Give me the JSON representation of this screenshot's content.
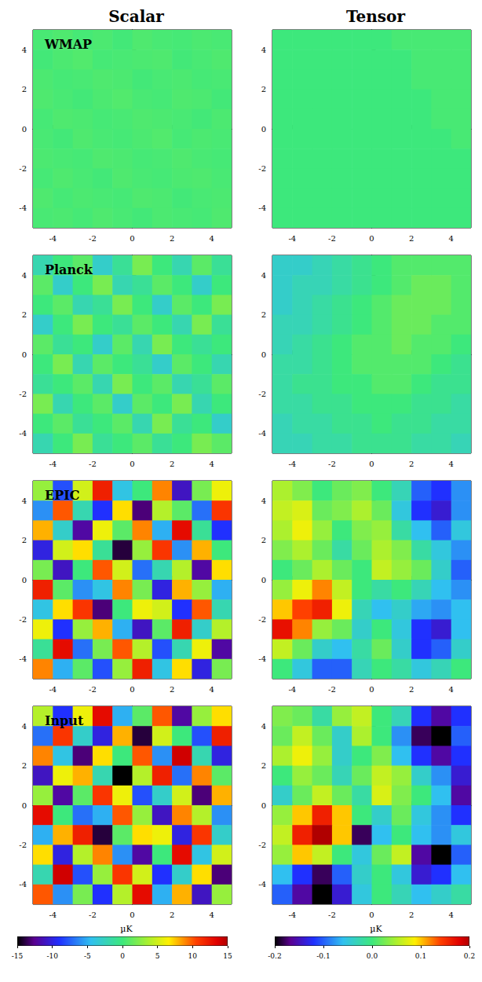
{
  "column_titles": [
    "Scalar",
    "Tensor"
  ],
  "colorbars": [
    {
      "label": "µK",
      "range": [
        -15,
        15
      ],
      "ticks": [
        -15,
        -10,
        -5,
        0,
        5,
        10,
        15
      ]
    },
    {
      "label": "µK",
      "range": [
        -0.2,
        0.2
      ],
      "ticks": [
        -0.2,
        -0.1,
        {
          "value": 0,
          "label": "0.0"
        },
        0.1,
        0.2
      ]
    }
  ],
  "chart_data": [
    {
      "type": "heatmap",
      "title": "WMAP",
      "xlim": [
        -5,
        5
      ],
      "ylim": [
        -5,
        5
      ],
      "xticks": [
        -4,
        -2,
        0,
        2,
        4
      ],
      "yticks": [
        -4,
        -2,
        0,
        2,
        4
      ],
      "cells": [
        [
          0.4,
          0.6,
          0.3,
          0.5,
          0.2,
          0.6,
          0.4,
          0.3,
          0.5,
          0.4
        ],
        [
          0.2,
          0.5,
          0.7,
          0.3,
          0.4,
          0.5,
          0.6,
          0.2,
          0.4,
          0.6
        ],
        [
          0.5,
          0.3,
          0.4,
          0.6,
          0.5,
          0.2,
          0.4,
          0.5,
          0.3,
          0.4
        ],
        [
          0.6,
          0.4,
          0.2,
          0.5,
          0.7,
          0.4,
          0.3,
          0.6,
          0.5,
          0.2
        ],
        [
          0.3,
          0.6,
          0.5,
          0.3,
          0.4,
          0.6,
          0.5,
          0.4,
          0.2,
          0.5
        ],
        [
          0.4,
          0.2,
          0.6,
          0.4,
          0.3,
          0.5,
          0.7,
          0.3,
          0.5,
          0.4
        ],
        [
          0.5,
          0.4,
          0.3,
          0.6,
          0.5,
          0.3,
          0.4,
          0.6,
          0.4,
          0.3
        ],
        [
          0.3,
          0.6,
          0.4,
          0.2,
          0.6,
          0.4,
          0.3,
          0.5,
          0.6,
          0.4
        ],
        [
          0.6,
          0.3,
          0.5,
          0.4,
          0.3,
          0.6,
          0.5,
          0.2,
          0.4,
          0.5
        ],
        [
          0.4,
          0.5,
          0.3,
          0.6,
          0.4,
          0.2,
          0.5,
          0.4,
          0.3,
          0.6
        ]
      ]
    },
    {
      "type": "heatmap",
      "xlim": [
        -5,
        5
      ],
      "ylim": [
        -5,
        5
      ],
      "xticks": [
        -4,
        -2,
        0,
        2,
        4
      ],
      "yticks": [
        -4,
        -2,
        0,
        2,
        4
      ],
      "cells": [
        [
          0,
          0,
          0,
          0,
          0,
          0,
          0.005,
          0.005,
          0.005,
          0.005
        ],
        [
          0,
          0,
          0,
          0,
          0,
          0,
          0,
          0.005,
          0.005,
          0.005
        ],
        [
          0,
          0,
          0,
          0,
          0,
          0,
          0,
          0.005,
          0.005,
          0.005
        ],
        [
          0,
          0,
          0,
          0,
          0,
          0,
          0,
          0,
          0.005,
          0.005
        ],
        [
          0,
          0,
          0,
          0,
          0,
          0,
          0,
          0,
          0.005,
          0.005
        ],
        [
          0,
          0,
          0,
          0,
          0,
          0,
          0,
          0,
          0,
          0.005
        ],
        [
          0,
          0,
          0,
          0,
          0,
          0,
          0,
          0,
          0,
          0
        ],
        [
          0,
          0,
          0,
          0,
          0,
          0,
          0,
          0,
          0,
          0
        ],
        [
          0,
          0,
          0,
          0,
          0,
          0,
          0,
          0,
          0,
          0
        ],
        [
          0,
          0,
          0,
          0,
          0,
          0,
          0,
          0,
          0,
          0
        ]
      ]
    },
    {
      "type": "heatmap",
      "title": "Planck",
      "xlim": [
        -5,
        5
      ],
      "ylim": [
        -5,
        5
      ],
      "xticks": [
        -4,
        -2,
        0,
        2,
        4
      ],
      "yticks": [
        -4,
        -2,
        0,
        2,
        4
      ],
      "cells": [
        [
          -2,
          0,
          1,
          -3,
          -1,
          2,
          0,
          -2,
          1,
          -1
        ],
        [
          1,
          -3,
          0,
          2,
          -2,
          -1,
          1,
          0,
          -3,
          0
        ],
        [
          0,
          1,
          -2,
          -1,
          2,
          0,
          -3,
          1,
          0,
          2
        ],
        [
          -3,
          0,
          2,
          0,
          -1,
          1,
          0,
          -2,
          2,
          -1
        ],
        [
          1,
          -1,
          0,
          -3,
          1,
          -2,
          2,
          0,
          -1,
          0
        ],
        [
          0,
          2,
          -2,
          1,
          0,
          -1,
          -3,
          1,
          0,
          -2
        ],
        [
          -1,
          0,
          1,
          -2,
          2,
          0,
          1,
          -2,
          -1,
          1
        ],
        [
          2,
          -2,
          0,
          1,
          -3,
          1,
          0,
          2,
          -2,
          0
        ],
        [
          0,
          1,
          -1,
          0,
          1,
          -2,
          2,
          -1,
          0,
          -3
        ],
        [
          -2,
          0,
          2,
          -1,
          0,
          1,
          -1,
          0,
          2,
          1
        ]
      ]
    },
    {
      "type": "heatmap",
      "xlim": [
        -5,
        5
      ],
      "ylim": [
        -5,
        5
      ],
      "xticks": [
        -4,
        -2,
        0,
        2,
        4
      ],
      "yticks": [
        -4,
        -2,
        0,
        2,
        4
      ],
      "cells": [
        [
          -0.04,
          -0.04,
          -0.03,
          -0.02,
          -0.01,
          0,
          0.01,
          0.01,
          0.01,
          0.01
        ],
        [
          -0.04,
          -0.03,
          -0.03,
          -0.02,
          -0.01,
          0,
          0.01,
          0.02,
          0.02,
          0.01
        ],
        [
          -0.04,
          -0.03,
          -0.02,
          -0.01,
          0,
          0.01,
          0.02,
          0.02,
          0.02,
          0.01
        ],
        [
          -0.03,
          -0.03,
          -0.02,
          -0.01,
          0,
          0.01,
          0.02,
          0.02,
          0.01,
          0.01
        ],
        [
          -0.03,
          -0.02,
          -0.01,
          0,
          0.01,
          0.01,
          0.02,
          0.01,
          0.01,
          0
        ],
        [
          -0.02,
          -0.02,
          -0.01,
          0,
          0.01,
          0.01,
          0.01,
          0.01,
          0,
          -0.01
        ],
        [
          -0.02,
          -0.01,
          -0.01,
          0,
          0,
          0.01,
          0.01,
          0,
          -0.01,
          -0.01
        ],
        [
          -0.02,
          -0.02,
          -0.01,
          -0.01,
          0,
          0,
          0,
          -0.01,
          -0.01,
          -0.02
        ],
        [
          -0.03,
          -0.02,
          -0.02,
          -0.01,
          -0.01,
          0,
          -0.01,
          -0.01,
          -0.02,
          -0.02
        ],
        [
          -0.03,
          -0.03,
          -0.02,
          -0.02,
          -0.01,
          -0.01,
          -0.01,
          -0.02,
          -0.02,
          -0.03
        ]
      ]
    },
    {
      "type": "heatmap",
      "title": "EPIC",
      "xlim": [
        -5,
        5
      ],
      "ylim": [
        -5,
        5
      ],
      "xticks": [
        -4,
        -2,
        0,
        2,
        4
      ],
      "yticks": [
        -4,
        -2,
        0,
        2,
        4
      ],
      "cells": [
        [
          3,
          -8,
          5,
          12,
          -4,
          0,
          9,
          -11,
          2,
          6
        ],
        [
          -6,
          10,
          -2,
          -9,
          7,
          -13,
          4,
          1,
          -7,
          11
        ],
        [
          8,
          -3,
          -12,
          6,
          1,
          9,
          -5,
          13,
          -1,
          -9
        ],
        [
          -10,
          5,
          7,
          -1,
          -14,
          3,
          11,
          -6,
          8,
          0
        ],
        [
          2,
          -11,
          0,
          10,
          5,
          -7,
          -2,
          4,
          -12,
          7
        ],
        [
          12,
          1,
          -6,
          -4,
          9,
          2,
          -10,
          8,
          3,
          -5
        ],
        [
          -4,
          7,
          11,
          -13,
          0,
          6,
          5,
          -9,
          10,
          -2
        ],
        [
          6,
          -9,
          3,
          8,
          -5,
          -11,
          1,
          12,
          -3,
          4
        ],
        [
          -1,
          13,
          -7,
          2,
          10,
          4,
          -8,
          -2,
          6,
          -12
        ],
        [
          9,
          -5,
          1,
          -8,
          3,
          12,
          -4,
          7,
          -10,
          2
        ]
      ]
    },
    {
      "type": "heatmap",
      "xlim": [
        -5,
        5
      ],
      "ylim": [
        -5,
        5
      ],
      "xticks": [
        -4,
        -2,
        0,
        2,
        4
      ],
      "yticks": [
        -4,
        -2,
        0,
        2,
        4
      ],
      "cells": [
        [
          0.05,
          0.03,
          0.0,
          0.02,
          0.03,
          0.0,
          -0.03,
          -0.1,
          -0.12,
          -0.08
        ],
        [
          0.06,
          0.07,
          0.02,
          0.03,
          0.05,
          0.02,
          -0.05,
          -0.12,
          -0.14,
          -0.08
        ],
        [
          0.05,
          0.08,
          0.04,
          0.0,
          0.03,
          0.04,
          -0.02,
          -0.06,
          -0.1,
          -0.05
        ],
        [
          0.03,
          0.05,
          0.02,
          -0.02,
          0.02,
          0.05,
          0.03,
          -0.02,
          -0.05,
          -0.08
        ],
        [
          0.0,
          0.02,
          0.05,
          0.02,
          0.0,
          0.06,
          0.04,
          0.02,
          -0.04,
          -0.1
        ],
        [
          0.04,
          0.08,
          0.12,
          0.06,
          0.0,
          -0.02,
          0.0,
          -0.03,
          -0.06,
          -0.08
        ],
        [
          0.1,
          0.14,
          0.16,
          0.08,
          -0.03,
          -0.06,
          -0.04,
          -0.07,
          -0.08,
          -0.06
        ],
        [
          0.17,
          0.12,
          0.04,
          0.02,
          -0.04,
          0.0,
          -0.05,
          -0.12,
          -0.14,
          -0.06
        ],
        [
          0.06,
          0.02,
          -0.04,
          -0.06,
          -0.02,
          0.02,
          -0.04,
          -0.12,
          -0.1,
          -0.04
        ],
        [
          0.0,
          -0.05,
          -0.1,
          -0.1,
          -0.03,
          0.0,
          -0.02,
          -0.05,
          -0.03,
          0.0
        ]
      ]
    },
    {
      "type": "heatmap",
      "title": "Input",
      "xlim": [
        -5,
        5
      ],
      "ylim": [
        -5,
        5
      ],
      "xticks": [
        -4,
        -2,
        0,
        2,
        4
      ],
      "yticks": [
        -4,
        -2,
        0,
        2,
        4
      ],
      "cells": [
        [
          4,
          -9,
          6,
          13,
          -5,
          1,
          10,
          -12,
          3,
          7
        ],
        [
          -7,
          11,
          -3,
          -10,
          8,
          -14,
          5,
          0,
          -8,
          12
        ],
        [
          9,
          -4,
          -13,
          7,
          0,
          10,
          -6,
          14,
          -2,
          -10
        ],
        [
          -11,
          6,
          8,
          -2,
          -15,
          4,
          12,
          -7,
          9,
          1
        ],
        [
          3,
          -12,
          1,
          11,
          6,
          -8,
          -3,
          5,
          -13,
          8
        ],
        [
          13,
          0,
          -7,
          -5,
          10,
          3,
          -11,
          9,
          4,
          -6
        ],
        [
          -5,
          8,
          12,
          -14,
          1,
          7,
          6,
          -10,
          11,
          -3
        ],
        [
          7,
          -10,
          4,
          9,
          -6,
          -12,
          0,
          13,
          -4,
          5
        ],
        [
          -2,
          14,
          -8,
          3,
          11,
          5,
          -9,
          -3,
          7,
          -13
        ],
        [
          10,
          -6,
          2,
          -9,
          4,
          13,
          -5,
          8,
          -11,
          3
        ]
      ]
    },
    {
      "type": "heatmap",
      "xlim": [
        -5,
        5
      ],
      "ylim": [
        -5,
        5
      ],
      "xticks": [
        -4,
        -2,
        0,
        2,
        4
      ],
      "yticks": [
        -4,
        -2,
        0,
        2,
        4
      ],
      "cells": [
        [
          0.03,
          0.02,
          -0.02,
          0.04,
          0.06,
          0.0,
          -0.03,
          -0.12,
          -0.16,
          -0.12
        ],
        [
          0.02,
          0.06,
          0.02,
          -0.04,
          0.05,
          0.0,
          -0.08,
          -0.18,
          -0.22,
          -0.1
        ],
        [
          0.05,
          0.08,
          0.04,
          -0.04,
          0.0,
          0.03,
          -0.06,
          -0.12,
          -0.16,
          -0.12
        ],
        [
          0.0,
          0.04,
          0.02,
          -0.03,
          0.02,
          0.06,
          0.04,
          -0.04,
          -0.08,
          -0.14
        ],
        [
          -0.04,
          0.02,
          0.06,
          0.02,
          -0.02,
          0.07,
          0.03,
          0.0,
          -0.06,
          -0.16
        ],
        [
          0.04,
          0.1,
          0.16,
          0.1,
          0.0,
          -0.04,
          0.02,
          -0.05,
          -0.08,
          -0.12
        ],
        [
          0.06,
          0.16,
          0.2,
          0.1,
          -0.18,
          -0.06,
          0.0,
          -0.06,
          -0.08,
          -0.05
        ],
        [
          0.04,
          0.1,
          0.06,
          0.0,
          -0.05,
          0.02,
          0.06,
          -0.16,
          -0.22,
          -0.1
        ],
        [
          -0.06,
          -0.12,
          -0.18,
          -0.1,
          -0.04,
          0.0,
          -0.05,
          -0.14,
          -0.12,
          -0.06
        ],
        [
          -0.1,
          -0.16,
          -0.22,
          -0.14,
          -0.05,
          0.0,
          -0.03,
          -0.06,
          -0.04,
          -0.02
        ]
      ]
    }
  ]
}
